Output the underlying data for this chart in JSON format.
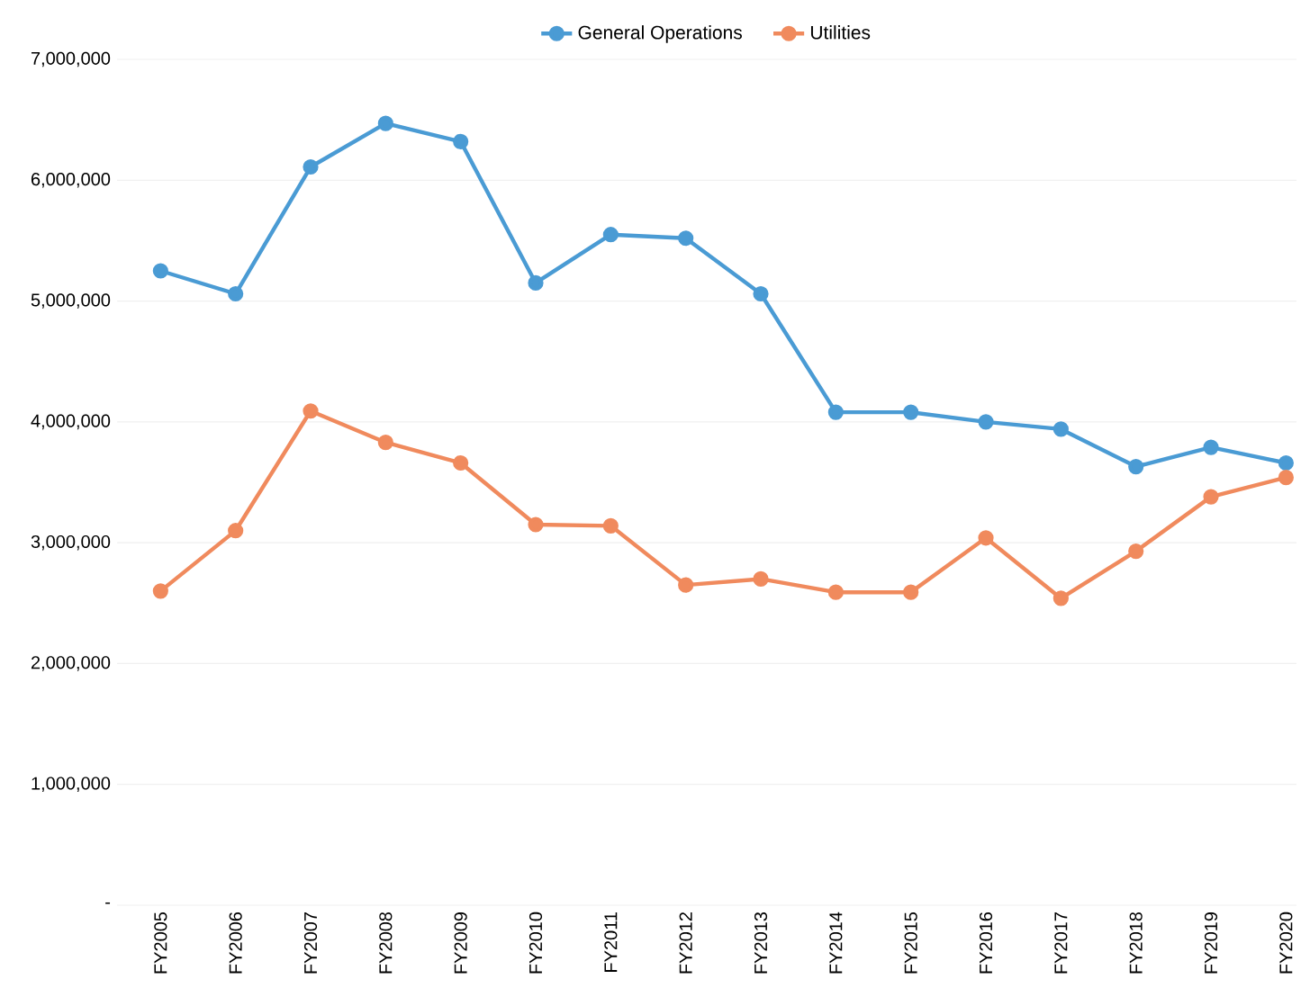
{
  "chart_data": {
    "type": "line",
    "categories": [
      "FY2005",
      "FY2006",
      "FY2007",
      "FY2008",
      "FY2009",
      "FY2010",
      "FY2011",
      "FY2012",
      "FY2013",
      "FY2014",
      "FY2015",
      "FY2016",
      "FY2017",
      "FY2018",
      "FY2019",
      "FY2020"
    ],
    "series": [
      {
        "name": "General Operations",
        "color": "#4a9bd4",
        "values": [
          5250000,
          5060000,
          6110000,
          6470000,
          6320000,
          5150000,
          5550000,
          5520000,
          5060000,
          4080000,
          4080000,
          4000000,
          3940000,
          3630000,
          3790000,
          3660000
        ]
      },
      {
        "name": "Utilities",
        "color": "#f08a5d",
        "values": [
          2600000,
          3100000,
          4090000,
          3830000,
          3660000,
          3150000,
          3140000,
          2650000,
          2700000,
          2590000,
          2590000,
          3040000,
          2540000,
          2930000,
          3380000,
          3540000
        ]
      }
    ],
    "ylim": [
      0,
      7000000
    ],
    "yticks": [
      {
        "value": 0,
        "label": "-"
      },
      {
        "value": 1000000,
        "label": "1,000,000"
      },
      {
        "value": 2000000,
        "label": "2,000,000"
      },
      {
        "value": 3000000,
        "label": "3,000,000"
      },
      {
        "value": 4000000,
        "label": "4,000,000"
      },
      {
        "value": 5000000,
        "label": "5,000,000"
      },
      {
        "value": 6000000,
        "label": "6,000,000"
      },
      {
        "value": 7000000,
        "label": "7,000,000"
      }
    ],
    "grid": "y",
    "legend": "top",
    "marker": "circle",
    "line_style": "solid"
  }
}
